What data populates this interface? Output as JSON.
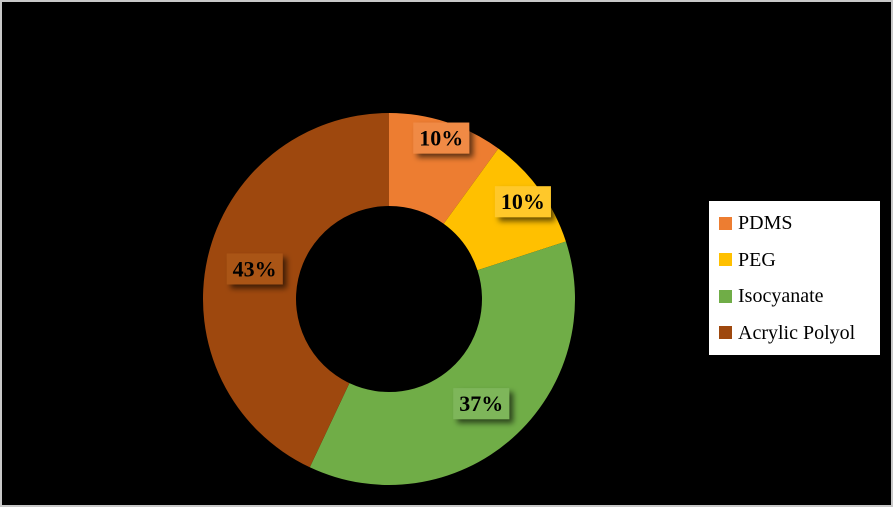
{
  "window": {
    "background_color": "#000000",
    "border_color": "#C8C8C8"
  },
  "chart_data": {
    "type": "pie",
    "subtype": "donut",
    "title": "",
    "categories": [
      "PDMS",
      "PEG",
      "Isocyanate",
      "Acrylic Polyol"
    ],
    "values": [
      10,
      10,
      37,
      43
    ],
    "data_labels": [
      "10%",
      "10%",
      "37%",
      "43%"
    ],
    "slice_colors": [
      "#ED7D31",
      "#FFC000",
      "#70AD47",
      "#9E480E"
    ],
    "label_fill_colors": [
      "#F08A45",
      "#FFC82B",
      "#7EB65A",
      "#AA5516"
    ],
    "start_angle_deg": 0,
    "direction": "clockwise",
    "hole_ratio": 0.5,
    "label_radius_fractions": [
      0.91,
      0.89,
      0.75,
      0.74
    ],
    "legend": {
      "position": "right",
      "background": "#FFFFFF",
      "entries": [
        "PDMS",
        "PEG",
        "Isocyanate",
        "Acrylic Polyol"
      ]
    }
  }
}
